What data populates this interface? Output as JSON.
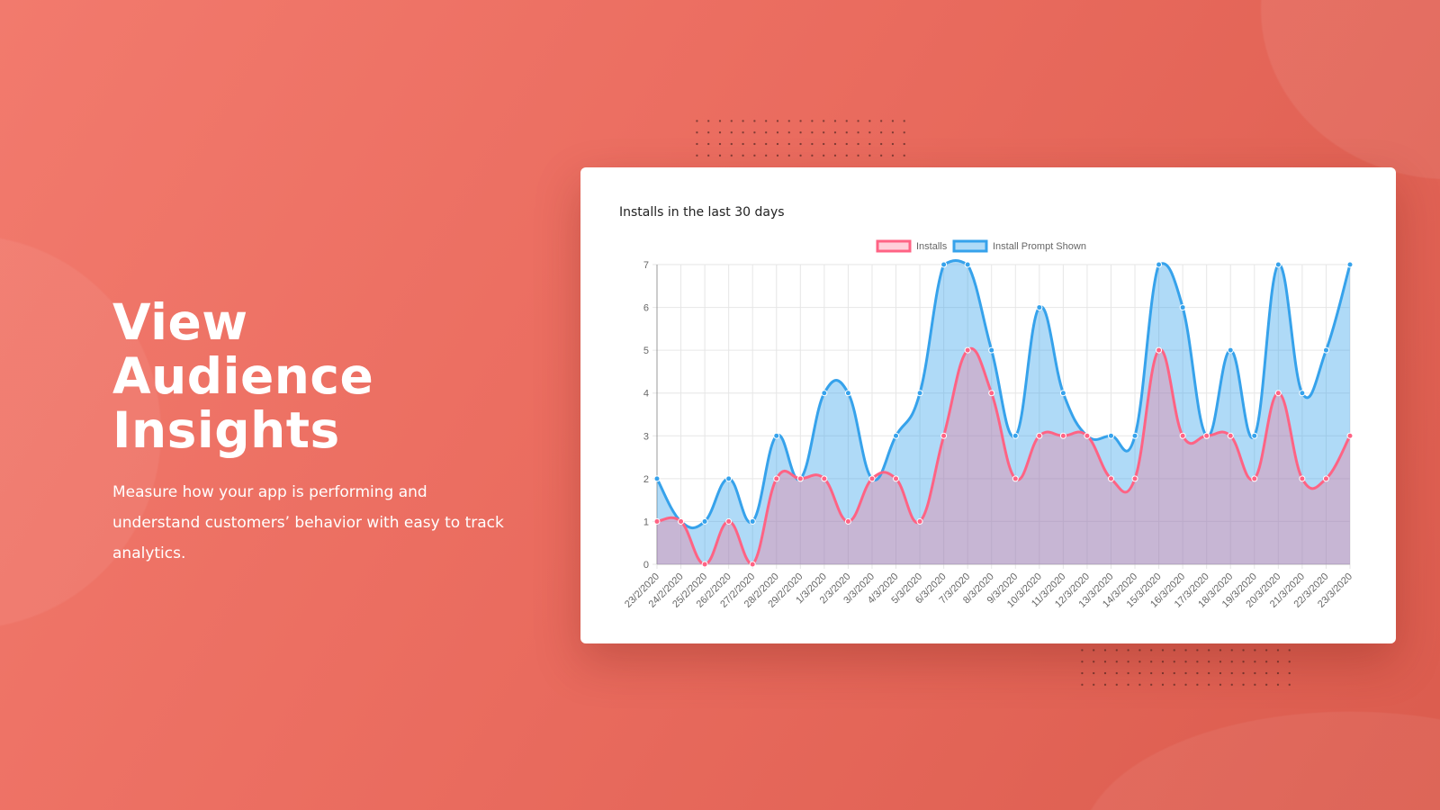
{
  "hero": {
    "heading": "View Audience Insights",
    "description": "Measure how your app is performing and understand customers’ behavior with easy to track analytics."
  },
  "chart_data": {
    "type": "line",
    "title": "Installs in the last 30 days",
    "categories": [
      "23/2/2020",
      "24/2/2020",
      "25/2/2020",
      "26/2/2020",
      "27/2/2020",
      "28/2/2020",
      "29/2/2020",
      "1/3/2020",
      "2/3/2020",
      "3/3/2020",
      "4/3/2020",
      "5/3/2020",
      "6/3/2020",
      "7/3/2020",
      "8/3/2020",
      "9/3/2020",
      "10/3/2020",
      "11/3/2020",
      "12/3/2020",
      "13/3/2020",
      "14/3/2020",
      "15/3/2020",
      "16/3/2020",
      "17/3/2020",
      "18/3/2020",
      "19/3/2020",
      "20/3/2020",
      "21/3/2020",
      "22/3/2020",
      "23/3/2020"
    ],
    "series": [
      {
        "name": "Installs",
        "color": "#ff6384",
        "fill": "rgba(255,99,132,0.3)",
        "values": [
          1,
          1,
          0,
          1,
          0,
          2,
          2,
          2,
          1,
          2,
          2,
          1,
          3,
          5,
          4,
          2,
          3,
          3,
          3,
          2,
          2,
          5,
          3,
          3,
          3,
          2,
          4,
          2,
          2,
          3
        ]
      },
      {
        "name": "Install Prompt Shown",
        "color": "#36a2eb",
        "fill": "rgba(54,162,235,0.4)",
        "values": [
          2,
          1,
          1,
          2,
          1,
          3,
          2,
          4,
          4,
          2,
          3,
          4,
          7,
          7,
          5,
          3,
          6,
          4,
          3,
          3,
          3,
          7,
          6,
          3,
          5,
          3,
          7,
          4,
          5,
          7
        ]
      }
    ],
    "ylim": [
      0,
      7
    ],
    "yticks": [
      "0",
      "1",
      "2",
      "3",
      "4",
      "5",
      "6",
      "7"
    ],
    "grid": true,
    "legend": "top-center",
    "fill": true
  }
}
